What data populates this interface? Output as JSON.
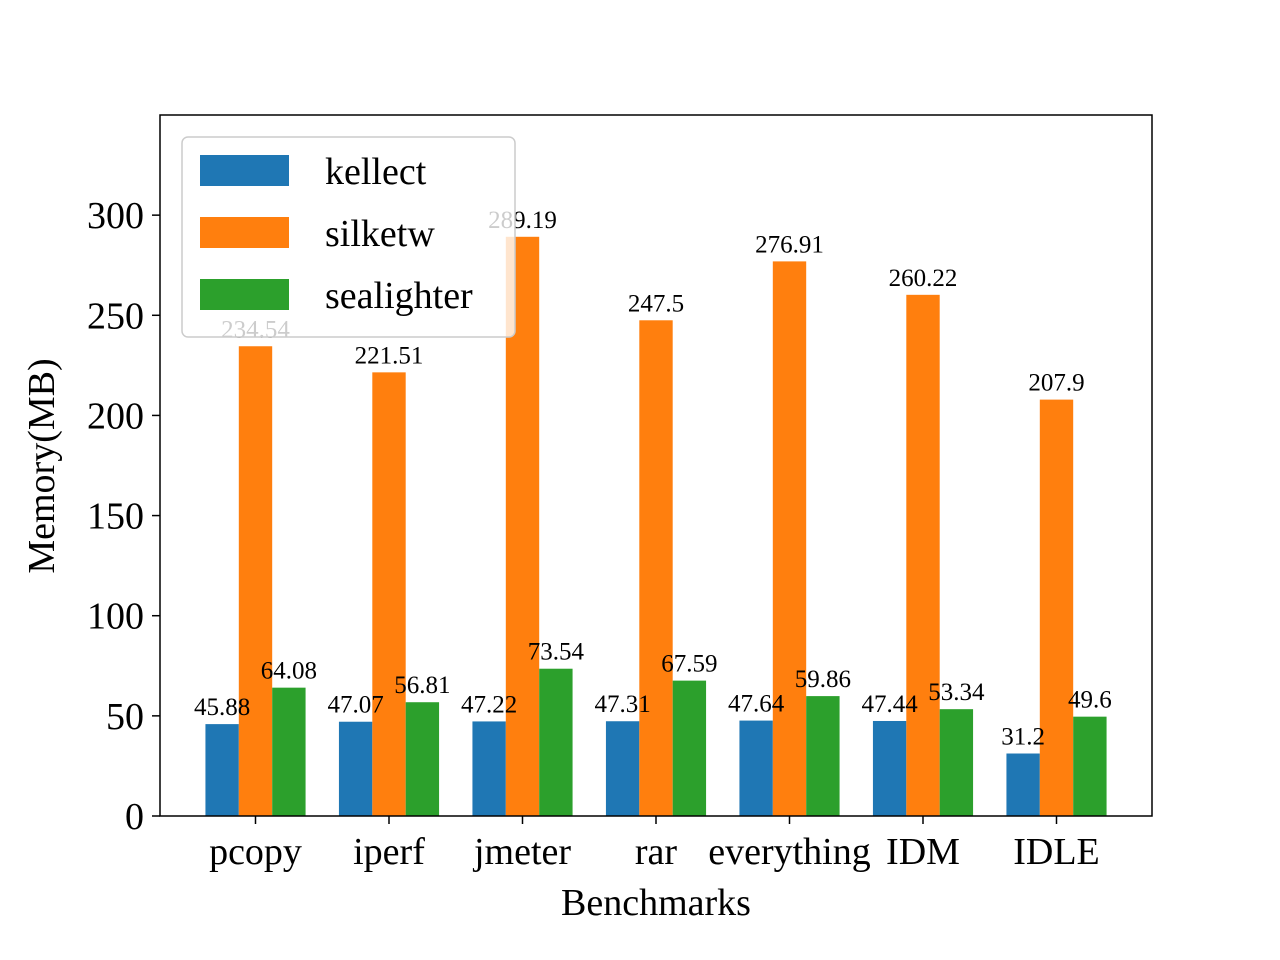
{
  "chart_data": {
    "type": "bar",
    "title": "",
    "xlabel": "Benchmarks",
    "ylabel": "Memory(MB)",
    "ylim": [
      0,
      350
    ],
    "yticks": [
      0,
      50,
      100,
      150,
      200,
      250,
      300
    ],
    "categories": [
      "pcopy",
      "iperf",
      "jmeter",
      "rar",
      "everything",
      "IDM",
      "IDLE"
    ],
    "series": [
      {
        "name": "kellect",
        "color": "#1f77b4",
        "values": [
          45.88,
          47.07,
          47.22,
          47.31,
          47.64,
          47.44,
          31.2
        ],
        "labels": [
          "45.88",
          "47.07",
          "47.22",
          "47.31",
          "47.64",
          "47.44",
          "31.2"
        ]
      },
      {
        "name": "silketw",
        "color": "#ff7f0e",
        "values": [
          234.54,
          221.51,
          289.19,
          247.5,
          276.91,
          260.22,
          207.9
        ],
        "labels": [
          "234.54",
          "221.51",
          "289.19",
          "247.5",
          "276.91",
          "260.22",
          "207.9"
        ]
      },
      {
        "name": "sealighter",
        "color": "#2ca02c",
        "values": [
          64.08,
          56.81,
          73.54,
          67.59,
          59.86,
          53.34,
          49.6
        ],
        "labels": [
          "64.08",
          "56.81",
          "73.54",
          "67.59",
          "59.86",
          "53.34",
          "49.6"
        ]
      }
    ],
    "legend": "top-left",
    "grid": false
  }
}
